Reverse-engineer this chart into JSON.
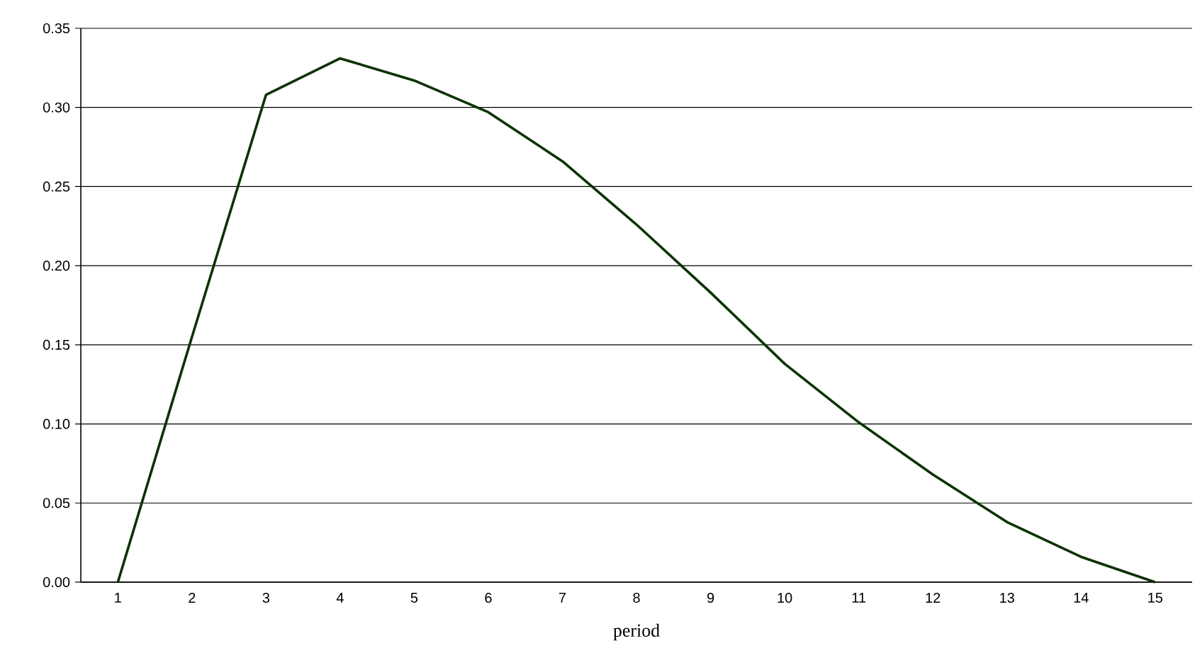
{
  "chart_data": {
    "type": "line",
    "xlabel": "period",
    "categories": [
      "1",
      "2",
      "3",
      "4",
      "5",
      "6",
      "7",
      "8",
      "9",
      "10",
      "11",
      "12",
      "13",
      "14",
      "15"
    ],
    "series": [
      {
        "color": "#0b3300",
        "values": [
          0,
          0.155,
          0.308,
          0.331,
          0.317,
          0.297,
          0.266,
          0.226,
          0.183,
          0.138,
          0.101,
          0.068,
          0.038,
          0.016,
          0
        ]
      }
    ],
    "ylim": [
      0,
      0.35
    ],
    "yticks": [
      {
        "value": 0,
        "label": "0.00"
      },
      {
        "value": 0.05,
        "label": "0.05"
      },
      {
        "value": 0.1,
        "label": "0.10"
      },
      {
        "value": 0.15,
        "label": "0.15"
      },
      {
        "value": 0.2,
        "label": "0.20"
      },
      {
        "value": 0.25,
        "label": "0.25"
      },
      {
        "value": 0.3,
        "label": "0.30"
      },
      {
        "value": 0.35,
        "label": "0.35"
      }
    ],
    "grid": "y",
    "marker": "none",
    "line_style": "solid"
  }
}
